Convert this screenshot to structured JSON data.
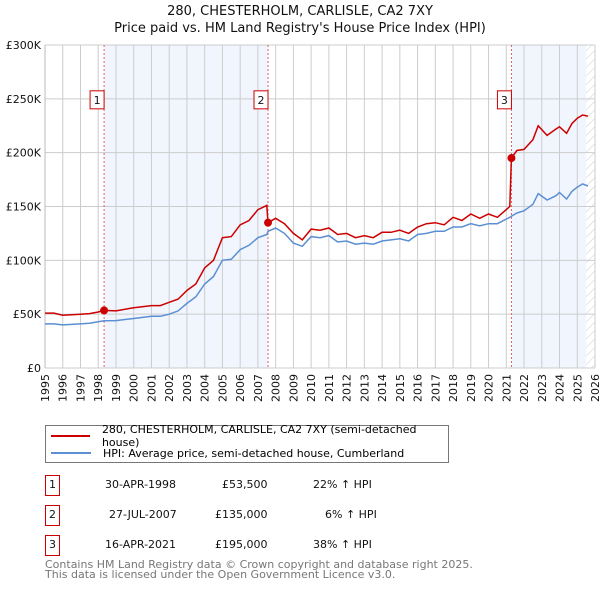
{
  "chart_data": {
    "type": "line",
    "title": "280, CHESTERHOLM, CARLISLE, CA2 7XY",
    "subtitle": "Price paid vs. HM Land Registry's House Price Index (HPI)",
    "xlim": [
      1995,
      2026
    ],
    "ylim": [
      0,
      300000
    ],
    "yticks": [
      {
        "v": 0,
        "label": "£0"
      },
      {
        "v": 50000,
        "label": "£50K"
      },
      {
        "v": 100000,
        "label": "£100K"
      },
      {
        "v": 150000,
        "label": "£150K"
      },
      {
        "v": 200000,
        "label": "£200K"
      },
      {
        "v": 250000,
        "label": "£250K"
      },
      {
        "v": 300000,
        "label": "£300K"
      }
    ],
    "xticks": [
      "1995",
      "1996",
      "1997",
      "1998",
      "1999",
      "2000",
      "2001",
      "2002",
      "2003",
      "2004",
      "2005",
      "2006",
      "2007",
      "2008",
      "2009",
      "2010",
      "2011",
      "2012",
      "2013",
      "2014",
      "2015",
      "2016",
      "2017",
      "2018",
      "2019",
      "2020",
      "2021",
      "2022",
      "2023",
      "2024",
      "2025",
      "2026"
    ],
    "grid": true,
    "shaded_ranges": [
      [
        1998.33,
        2007.57
      ],
      [
        2021.29,
        2025.5
      ]
    ],
    "hatched_from": 2025.5,
    "series": [
      {
        "name": "280, CHESTERHOLM, CARLISLE, CA2 7XY (semi-detached house)",
        "color": "#cc0000",
        "x": [
          1995,
          1995.5,
          1996,
          1996.5,
          1997,
          1997.5,
          1998,
          1998.33,
          1999,
          2000,
          2001,
          2001.5,
          2002,
          2002.5,
          2003,
          2003.5,
          2004,
          2004.5,
          2005,
          2005.5,
          2006,
          2006.5,
          2007,
          2007.5,
          2007.57,
          2008,
          2008.5,
          2009,
          2009.5,
          2010,
          2010.5,
          2011,
          2011.5,
          2012,
          2012.5,
          2013,
          2013.5,
          2014,
          2014.5,
          2015,
          2015.5,
          2016,
          2016.5,
          2017,
          2017.5,
          2018,
          2018.5,
          2019,
          2019.5,
          2020,
          2020.5,
          2021.2,
          2021.29,
          2021.6,
          2022,
          2022.5,
          2022.8,
          2023.3,
          2023.8,
          2024,
          2024.4,
          2024.7,
          2025,
          2025.3,
          2025.6
        ],
        "y": [
          51000,
          51000,
          49000,
          49500,
          50000,
          50500,
          52000,
          53500,
          53000,
          56000,
          58000,
          58000,
          61000,
          64000,
          72000,
          78000,
          93000,
          100000,
          121000,
          122000,
          133000,
          137000,
          147000,
          151000,
          135000,
          139000,
          134000,
          125000,
          119000,
          129000,
          128000,
          130000,
          124000,
          125000,
          121000,
          123000,
          121000,
          126000,
          126000,
          128000,
          125000,
          131000,
          134000,
          135000,
          133000,
          140000,
          137000,
          143000,
          139000,
          143000,
          140000,
          150000,
          195000,
          202000,
          203000,
          212000,
          225000,
          216000,
          222000,
          224000,
          218000,
          227000,
          232000,
          235000,
          234000
        ]
      },
      {
        "name": "HPI: Average price, semi-detached house, Cumberland",
        "color": "#5b8fd4",
        "x": [
          1995,
          1995.5,
          1996,
          1996.5,
          1997,
          1997.5,
          1998,
          1998.33,
          1999,
          2000,
          2001,
          2001.5,
          2002,
          2002.5,
          2003,
          2003.5,
          2004,
          2004.5,
          2005,
          2005.5,
          2006,
          2006.5,
          2007,
          2007.5,
          2007.57,
          2008,
          2008.5,
          2009,
          2009.5,
          2010,
          2010.5,
          2011,
          2011.5,
          2012,
          2012.5,
          2013,
          2013.5,
          2014,
          2014.5,
          2015,
          2015.5,
          2016,
          2016.5,
          2017,
          2017.5,
          2018,
          2018.5,
          2019,
          2019.5,
          2020,
          2020.5,
          2021.2,
          2021.29,
          2021.6,
          2022,
          2022.5,
          2022.8,
          2023.3,
          2023.8,
          2024,
          2024.4,
          2024.7,
          2025,
          2025.3,
          2025.6
        ],
        "y": [
          41000,
          41000,
          40000,
          40500,
          41000,
          41500,
          43000,
          43800,
          44000,
          46000,
          48000,
          48000,
          50000,
          53000,
          60000,
          66000,
          78000,
          85000,
          100000,
          101000,
          110000,
          114000,
          121000,
          124000,
          127000,
          130000,
          125000,
          116000,
          113000,
          122000,
          121000,
          123000,
          117000,
          118000,
          115000,
          116000,
          115000,
          118000,
          119000,
          120000,
          118000,
          124000,
          125000,
          127000,
          127000,
          131000,
          131000,
          134000,
          132000,
          134000,
          134000,
          140000,
          141000,
          144000,
          146000,
          152000,
          162000,
          156000,
          160000,
          163000,
          157000,
          164000,
          168000,
          171000,
          169000
        ]
      }
    ],
    "markers": [
      {
        "label": "1",
        "x": 1998.33,
        "y": 53500
      },
      {
        "label": "2",
        "x": 2007.57,
        "y": 135000
      },
      {
        "label": "3",
        "x": 2021.29,
        "y": 195000
      }
    ]
  },
  "legend": [
    {
      "label": "280, CHESTERHOLM, CARLISLE, CA2 7XY (semi-detached house)",
      "color": "#cc0000"
    },
    {
      "label": "HPI: Average price, semi-detached house, Cumberland",
      "color": "#5b8fd4"
    }
  ],
  "transactions": [
    {
      "num": "1",
      "date": "30-APR-1998",
      "price": "£53,500",
      "hpi": "22% ↑ HPI"
    },
    {
      "num": "2",
      "date": "27-JUL-2007",
      "price": "£135,000",
      "hpi": "6% ↑ HPI"
    },
    {
      "num": "3",
      "date": "16-APR-2021",
      "price": "£195,000",
      "hpi": "38% ↑ HPI"
    }
  ],
  "footer": {
    "line1": "Contains HM Land Registry data © Crown copyright and database right 2025.",
    "line2": "This data is licensed under the Open Government Licence v3.0."
  }
}
